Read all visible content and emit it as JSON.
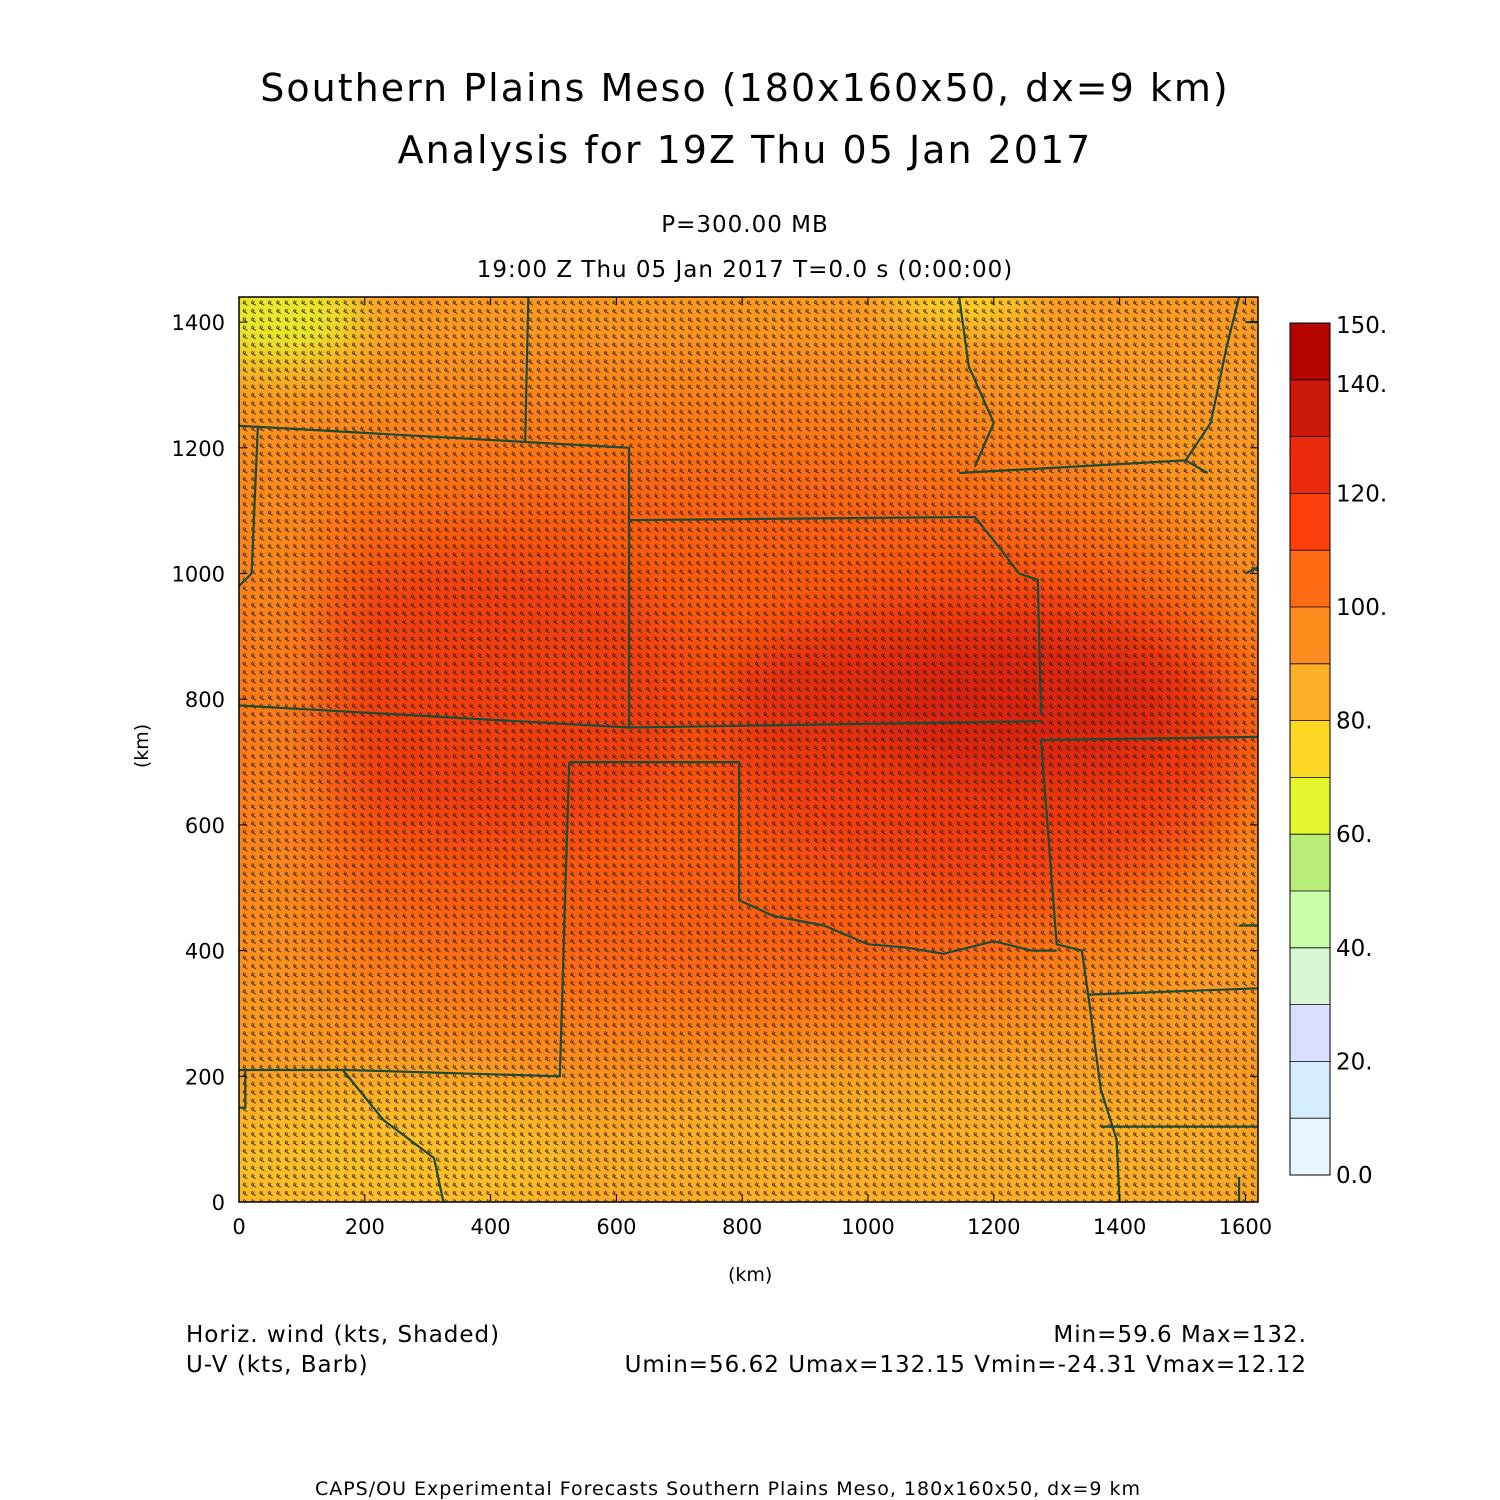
{
  "header": {
    "title_line1": "Southern Plains Meso (180x160x50, dx=9 km)",
    "title_line2": "Analysis for 19Z Thu 05 Jan 2017",
    "level": "P=300.00 MB",
    "valid_time": "19:00 Z Thu 05 Jan 2017    T=0.0 s (0:00:00)"
  },
  "axes": {
    "x_unit": "(km)",
    "y_unit": "(km)",
    "x_ticks": [
      "0",
      "200",
      "400",
      "600",
      "800",
      "1000",
      "1200",
      "1400",
      "1600"
    ],
    "y_ticks": [
      "0",
      "200",
      "400",
      "600",
      "800",
      "1000",
      "1200",
      "1400"
    ],
    "x_range": [
      0,
      1620
    ],
    "y_range": [
      0,
      1440
    ]
  },
  "colorbar": {
    "labels": [
      "0.0",
      "20.",
      "40.",
      "60.",
      "80.",
      "100.",
      "120.",
      "140.",
      "150."
    ],
    "colors": [
      "#e8f6ff",
      "#d6ecff",
      "#d9e0ff",
      "#d6f7d1",
      "#ccffaa",
      "#b8ee78",
      "#e6f62c",
      "#ffd826",
      "#ffae28",
      "#ff8c1e",
      "#ff6a12",
      "#fb3e0a",
      "#ea2a0a",
      "#cc1808",
      "#b40400"
    ],
    "color_stops": [
      0,
      10,
      20,
      30,
      40,
      50,
      60,
      70,
      80,
      90,
      100,
      110,
      120,
      130,
      140,
      150
    ]
  },
  "footer": {
    "field_shaded": "Horiz. wind (kts, Shaded)",
    "field_barb": "U-V (kts, Barb)",
    "min_max": "Min=59.6  Max=132.",
    "uv_stats": "Umin=56.62  Umax=132.15  Vmin=-24.31  Vmax=12.12",
    "credit": "CAPS/OU Experimental Forecasts  Southern Plains Meso, 180x160x50, dx=9 km"
  },
  "colors": {
    "border": "#1f4a35",
    "barb": "#262626",
    "frame": "#000000"
  }
}
